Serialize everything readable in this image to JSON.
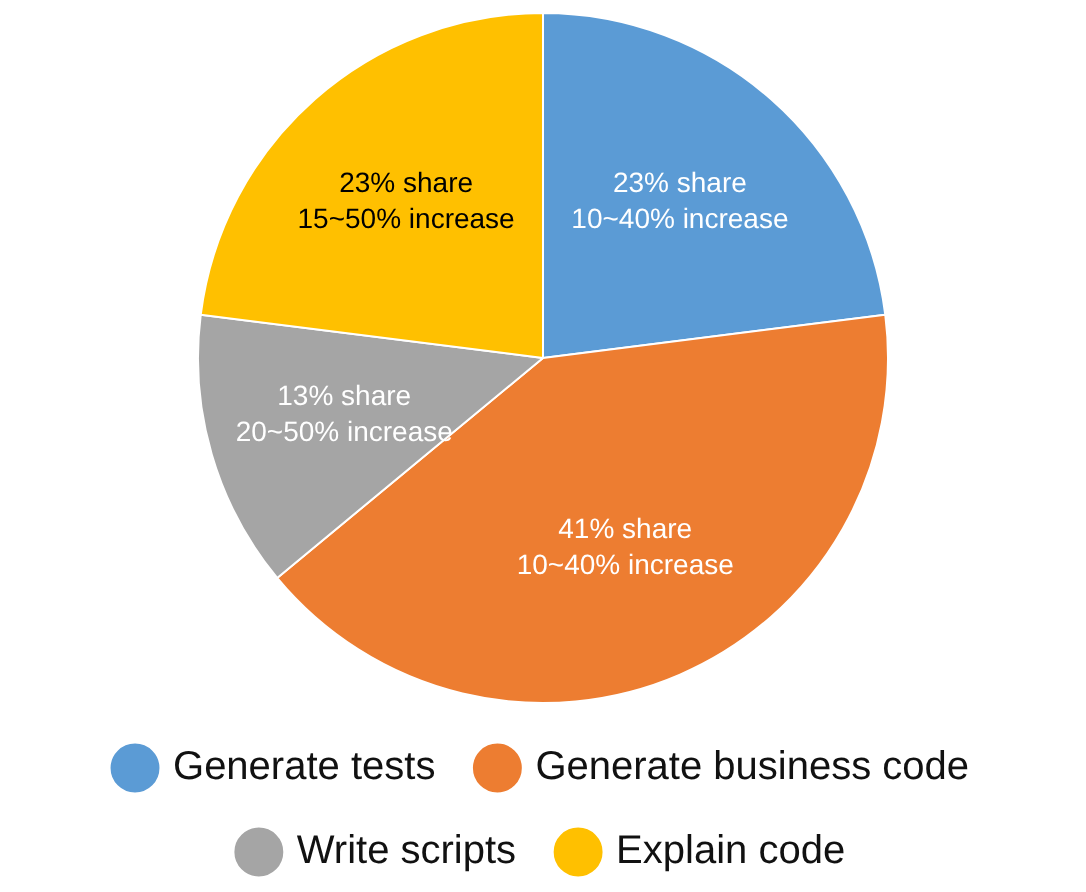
{
  "chart_data": {
    "type": "pie",
    "categories": [
      "Generate tests",
      "Generate business code",
      "Write scripts",
      "Explain code"
    ],
    "values": [
      23,
      41,
      13,
      23
    ],
    "colors": [
      "#5b9bd5",
      "#ed7d31",
      "#a5a5a5",
      "#ffc000"
    ],
    "value_labels": [
      "23% share\n10~40% increase",
      "41% share\n10~40% increase",
      "13% share\n20~50% increase",
      "23% share\n15~50% increase"
    ],
    "legend": "bottom"
  }
}
